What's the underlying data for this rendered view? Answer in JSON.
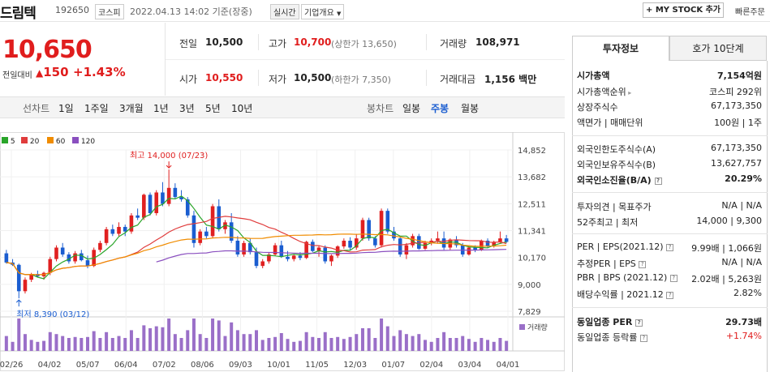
{
  "header": {
    "name": "드림텍",
    "code": "192650",
    "market": "코스피",
    "datetime": "2022.04.13 14:02 기준(장중)",
    "realtime": "실시간",
    "company_overview": "기업개요",
    "mystock": "MY STOCK 추가",
    "quick_order": "빠른주문"
  },
  "summary": {
    "price": "10,650",
    "vs_label": "전일대비",
    "change": "150",
    "change_pct": "+1.43%",
    "prev_close_label": "전일",
    "prev_close": "10,500",
    "high_label": "고가",
    "high": "10,700",
    "upper_limit": "(상한가 13,650)",
    "volume_label": "거래량",
    "volume": "108,971",
    "open_label": "시가",
    "open": "10,550",
    "low_label": "저가",
    "low": "10,500",
    "lower_limit": "(하한가 7,350)",
    "amount_label": "거래대금",
    "amount": "1,156",
    "amount_unit": "백만"
  },
  "period_tabs": {
    "line_label": "선차트",
    "items": [
      "1일",
      "1주일",
      "3개월",
      "1년",
      "3년",
      "5년",
      "10년"
    ],
    "candle_label": "봉차트",
    "candle_items": [
      "일봉",
      "주봉",
      "월봉"
    ],
    "selected_candle": "주봉"
  },
  "chart_data": {
    "type": "candlestick",
    "legend": [
      {
        "name": "5",
        "color": "#2aa52a"
      },
      {
        "name": "20",
        "color": "#e03c3c"
      },
      {
        "name": "60",
        "color": "#f08c00"
      },
      {
        "name": "120",
        "color": "#8a4fbf"
      }
    ],
    "y_ticks": [
      "14,852",
      "13,682",
      "12,511",
      "11,341",
      "10,170",
      "9,000",
      "7,829"
    ],
    "ylim": [
      7829,
      14852
    ],
    "x_ticks": [
      "02/26",
      "04/02",
      "05/07",
      "06/04",
      "07/02",
      "08/06",
      "09/03",
      "10/01",
      "11/05",
      "12/03",
      "01/07",
      "02/04",
      "03/04",
      "04/01"
    ],
    "high_annotation": "최고 14,000 (07/23)",
    "low_annotation": "최저 8,390 (03/12)",
    "volume_label": "거래량",
    "candles": [
      [
        10350,
        10500,
        9900,
        9950
      ],
      [
        9950,
        10100,
        9800,
        9850
      ],
      [
        9850,
        9900,
        8390,
        8700
      ],
      [
        8700,
        9300,
        8600,
        9200
      ],
      [
        9200,
        9500,
        9100,
        9450
      ],
      [
        9450,
        9600,
        9300,
        9350
      ],
      [
        9350,
        9550,
        9200,
        9500
      ],
      [
        9500,
        10200,
        9400,
        10100
      ],
      [
        10100,
        10700,
        10000,
        10600
      ],
      [
        10600,
        10800,
        10200,
        10300
      ],
      [
        10300,
        10400,
        9900,
        10000
      ],
      [
        10000,
        10450,
        9900,
        10350
      ],
      [
        10350,
        10500,
        10000,
        10050
      ],
      [
        10050,
        10250,
        9700,
        9800
      ],
      [
        9800,
        10600,
        9750,
        10500
      ],
      [
        10500,
        10900,
        10400,
        10800
      ],
      [
        10800,
        11500,
        10700,
        11400
      ],
      [
        11400,
        11600,
        11100,
        11200
      ],
      [
        11200,
        11700,
        11100,
        11500
      ],
      [
        11500,
        11600,
        11100,
        11300
      ],
      [
        11300,
        12100,
        11200,
        12000
      ],
      [
        12000,
        12300,
        11800,
        11900
      ],
      [
        11900,
        12950,
        11800,
        12900
      ],
      [
        12900,
        13000,
        12000,
        12100
      ],
      [
        12100,
        13100,
        12000,
        13000
      ],
      [
        13000,
        13450,
        12400,
        12500
      ],
      [
        12500,
        14000,
        12400,
        13200
      ],
      [
        13200,
        13400,
        12700,
        12800
      ],
      [
        12800,
        13100,
        12600,
        12700
      ],
      [
        12700,
        12800,
        11900,
        12000
      ],
      [
        12000,
        12200,
        10600,
        10800
      ],
      [
        10800,
        11400,
        10700,
        11300
      ],
      [
        11300,
        11500,
        11000,
        11100
      ],
      [
        11100,
        12500,
        11000,
        12400
      ],
      [
        12400,
        12700,
        11300,
        11400
      ],
      [
        11400,
        11800,
        11200,
        11700
      ],
      [
        11700,
        12100,
        10800,
        10900
      ],
      [
        10900,
        11100,
        10200,
        10300
      ],
      [
        10300,
        10900,
        10200,
        10800
      ],
      [
        10800,
        11000,
        10300,
        10400
      ],
      [
        10400,
        10600,
        9700,
        9800
      ],
      [
        9800,
        10100,
        9700,
        10000
      ],
      [
        10000,
        10400,
        9900,
        10300
      ],
      [
        10300,
        10800,
        10250,
        10700
      ],
      [
        10700,
        10900,
        10150,
        10200
      ],
      [
        10200,
        10450,
        10000,
        10100
      ],
      [
        10100,
        10300,
        10000,
        10250
      ],
      [
        10250,
        10400,
        10050,
        10150
      ],
      [
        10150,
        10900,
        10100,
        10850
      ],
      [
        10850,
        10950,
        10400,
        10450
      ],
      [
        10450,
        10700,
        10200,
        10600
      ],
      [
        10600,
        10700,
        9900,
        10000
      ],
      [
        10000,
        10300,
        9800,
        10250
      ],
      [
        10250,
        10700,
        10150,
        10650
      ],
      [
        10650,
        11000,
        10550,
        10900
      ],
      [
        10900,
        11050,
        10500,
        10600
      ],
      [
        10600,
        11200,
        10500,
        11000
      ],
      [
        11000,
        11900,
        10900,
        11800
      ],
      [
        11800,
        11900,
        10900,
        11000
      ],
      [
        11000,
        11100,
        10600,
        10700
      ],
      [
        10700,
        12300,
        10600,
        12200
      ],
      [
        12200,
        12300,
        11200,
        11300
      ],
      [
        11300,
        11500,
        10900,
        11000
      ],
      [
        11000,
        11100,
        10200,
        10300
      ],
      [
        10300,
        10800,
        10100,
        10700
      ],
      [
        10700,
        11200,
        10600,
        11100
      ],
      [
        11100,
        11200,
        10500,
        10550
      ],
      [
        10550,
        10900,
        10500,
        10800
      ],
      [
        10800,
        11000,
        10700,
        10900
      ],
      [
        10900,
        11300,
        10800,
        11000
      ],
      [
        11000,
        11300,
        10500,
        10600
      ],
      [
        10600,
        11000,
        10500,
        10950
      ],
      [
        10950,
        11100,
        10600,
        10700
      ],
      [
        10700,
        10800,
        10200,
        10300
      ],
      [
        10300,
        10700,
        10250,
        10600
      ],
      [
        10600,
        10700,
        10400,
        10500
      ],
      [
        10500,
        10950,
        10450,
        10900
      ],
      [
        10900,
        11000,
        10600,
        10650
      ],
      [
        10650,
        10900,
        10600,
        10850
      ],
      [
        10850,
        11300,
        10800,
        11000
      ],
      [
        11000,
        11150,
        10800,
        10850
      ]
    ]
  },
  "info_panel": {
    "tabs": [
      "투자정보",
      "호가 10단계"
    ],
    "market_cap_label": "시가총액",
    "market_cap": "7,154억원",
    "market_cap_rank_label": "시가총액순위",
    "market_cap_rank": "코스피 292위",
    "shares_label": "상장주식수",
    "shares": "67,173,350",
    "par_label": "액면가 | 매매단위",
    "par": "100원 | 1주",
    "foreign_limit_label": "외국인한도주식수(A)",
    "foreign_limit": "67,173,350",
    "foreign_hold_label": "외국인보유주식수(B)",
    "foreign_hold": "13,627,757",
    "foreign_ratio_label": "외국인소진율(B/A)",
    "foreign_ratio": "20.29%",
    "opinion_label": "투자의견 | 목표주가",
    "opinion": "N/A | N/A",
    "wk52_label": "52주최고 | 최저",
    "wk52": "14,000 | 9,300",
    "per_label": "PER | EPS(2021.12)",
    "per": "9.99배 | 1,066원",
    "est_per_label": "추정PER | EPS",
    "est_per": "N/A | N/A",
    "pbr_label": "PBR | BPS (2021.12)",
    "pbr": "2.02배 | 5,263원",
    "div_label": "배당수익률 | 2021.12",
    "div": "2.82%",
    "ind_per_label": "동일업종 PER",
    "ind_per": "29.73배",
    "ind_rate_label": "동일업종 등락률",
    "ind_rate": "+1.74%"
  }
}
